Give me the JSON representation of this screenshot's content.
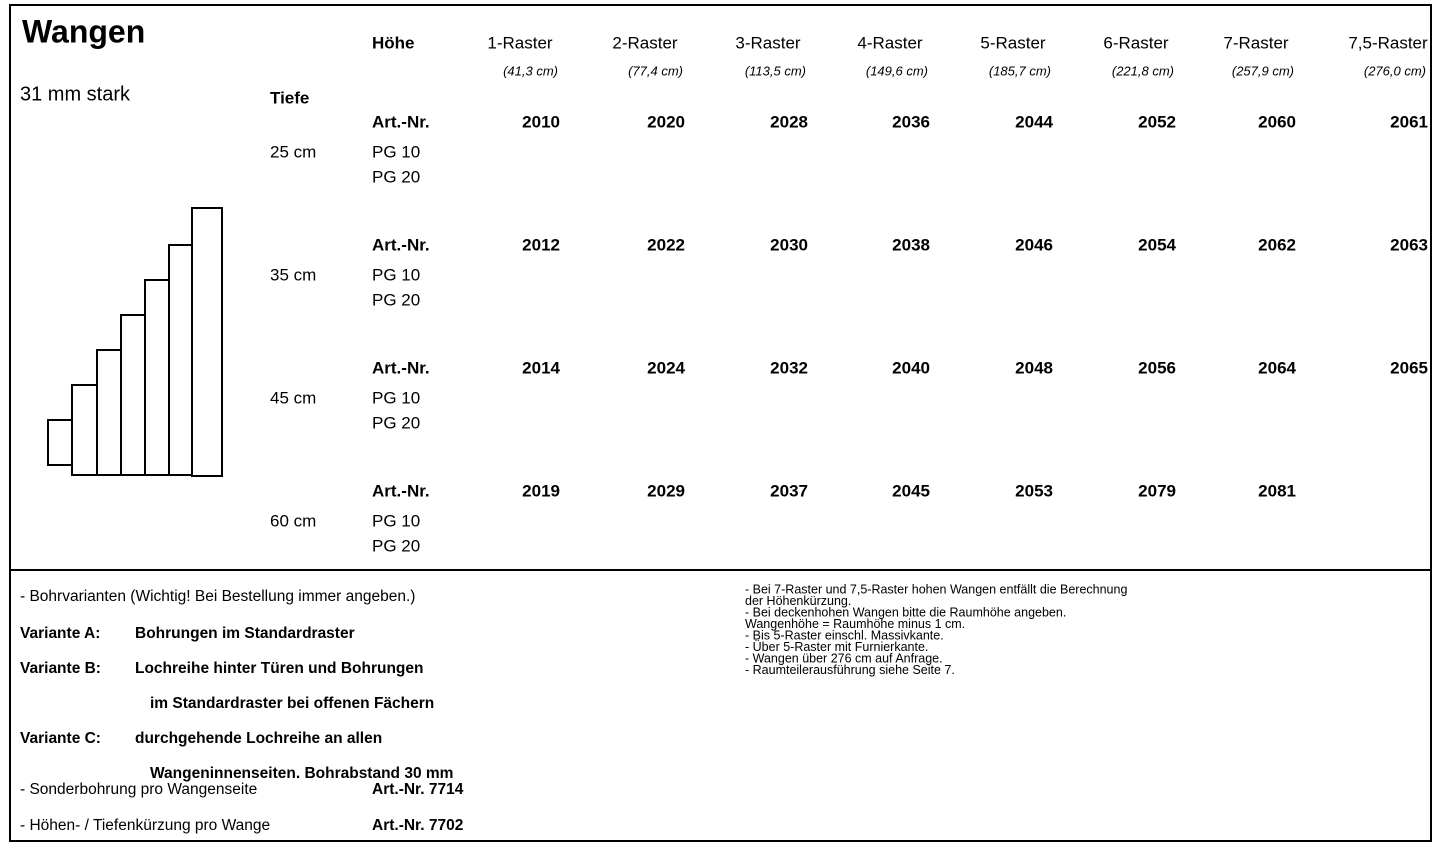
{
  "header": {
    "title": "Wangen",
    "subtitle": "31 mm stark",
    "height_label": "Höhe",
    "depth_label": "Tiefe"
  },
  "columns": [
    {
      "name": "1-Raster",
      "size": "(41,3 cm)"
    },
    {
      "name": "2-Raster",
      "size": "(77,4 cm)"
    },
    {
      "name": "3-Raster",
      "size": "(113,5 cm)"
    },
    {
      "name": "4-Raster",
      "size": "(149,6 cm)"
    },
    {
      "name": "5-Raster",
      "size": "(185,7 cm)"
    },
    {
      "name": "6-Raster",
      "size": "(221,8 cm)"
    },
    {
      "name": "7-Raster",
      "size": "(257,9 cm)"
    },
    {
      "name": "7,5-Raster",
      "size": "(276,0 cm)"
    }
  ],
  "rows": [
    {
      "depth": "25 cm",
      "art_label": "Art.-Nr.",
      "groups": [
        "PG 10",
        "PG 20"
      ],
      "numbers": [
        "2010",
        "2020",
        "2028",
        "2036",
        "2044",
        "2052",
        "2060",
        "2061"
      ]
    },
    {
      "depth": "35 cm",
      "art_label": "Art.-Nr.",
      "groups": [
        "PG 10",
        "PG 20"
      ],
      "numbers": [
        "2012",
        "2022",
        "2030",
        "2038",
        "2046",
        "2054",
        "2062",
        "2063"
      ]
    },
    {
      "depth": "45 cm",
      "art_label": "Art.-Nr.",
      "groups": [
        "PG 10",
        "PG 20"
      ],
      "numbers": [
        "2014",
        "2024",
        "2032",
        "2040",
        "2048",
        "2056",
        "2064",
        "2065"
      ]
    },
    {
      "depth": "60 cm",
      "art_label": "Art.-Nr.",
      "groups": [
        "PG 10",
        "PG 20"
      ],
      "numbers": [
        "2019",
        "2029",
        "2037",
        "2045",
        "2053",
        "2079",
        "2081"
      ]
    }
  ],
  "notes_left": {
    "intro": "- Bohrvarianten (Wichtig! Bei Bestellung immer angeben.)",
    "variants": [
      {
        "label": "Variante A:",
        "lines": [
          "Bohrungen im Standardraster"
        ]
      },
      {
        "label": "Variante B:",
        "lines": [
          "Lochreihe hinter Türen und Bohrungen",
          "im Standardraster bei offenen Fächern"
        ]
      },
      {
        "label": "Variante C:",
        "lines": [
          "durchgehende Lochreihe an allen",
          "Wangeninnenseiten. Bohrabstand 30 mm"
        ]
      }
    ],
    "extras": [
      {
        "text": "- Sonderbohrung pro Wangenseite",
        "art": "Art.-Nr. 7714"
      },
      {
        "text": "- Höhen- / Tiefenkürzung pro Wange",
        "art": "Art.-Nr. 7702"
      }
    ]
  },
  "notes_right": [
    "- Bei 7-Raster und 7,5-Raster hohen Wangen entfällt die Berechnung",
    "  der Höhenkürzung.",
    "- Bei deckenhohen Wangen bitte die Raumhöhe angeben.",
    "  Wangenhöhe = Raumhöhe minus 1 cm.",
    "- Bis 5-Raster einschl. Massivkante.",
    "- Über 5-Raster mit Furnierkante.",
    "- Wangen über 276 cm auf Anfrage.",
    "- Raumteilerausführung siehe Seite 7."
  ]
}
